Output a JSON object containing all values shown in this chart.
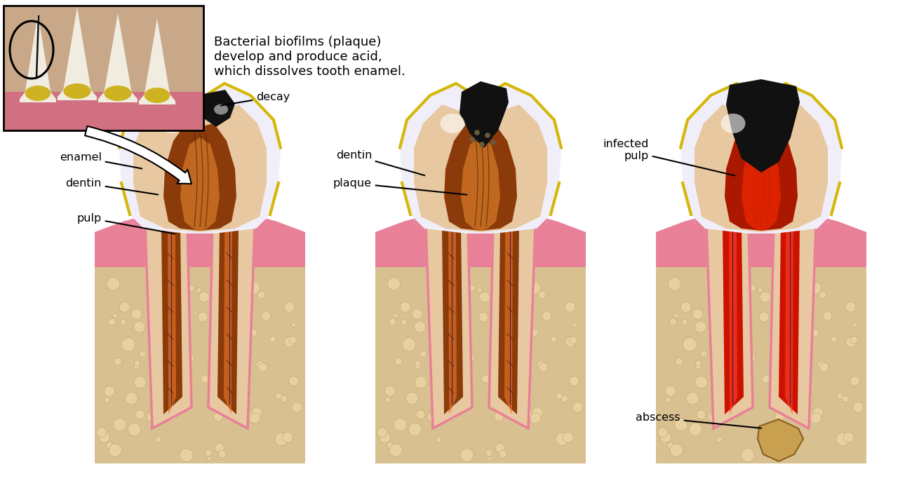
{
  "bg_color": "#ffffff",
  "caption": "Bacterial biofilms (plaque)\ndevelop and produce acid,\nwhich dissolves tooth enamel.",
  "caption_fontsize": 13,
  "labels": {
    "decay1": "decay",
    "enamel": "enamel",
    "dentin1": "dentin",
    "pulp": "pulp",
    "dentin2": "dentin",
    "plaque": "plaque",
    "infected_pulp": "infected\npulp",
    "abscess": "abscess"
  },
  "colors": {
    "enamel_white": "#f0eef8",
    "enamel_sheen": "#e8e2f2",
    "dentin_beige": "#e8c8a0",
    "dentin_mid": "#d4a878",
    "pulp_orange": "#c06820",
    "pulp_dark": "#8b3a0a",
    "pulp_bright": "#e07020",
    "decay_black": "#111111",
    "decay_dark": "#1c1208",
    "plaque_yellow": "#d4b80a",
    "plaque_yellow2": "#c8a800",
    "gum_pink": "#e88098",
    "gum_light": "#f0a0b0",
    "bone_tan": "#d8c090",
    "bone_light": "#e8d0a0",
    "root_outer": "#f0d0a8",
    "periodontal": "#e8a0a0",
    "nerve_dark": "#4a2200",
    "nerve_red": "#cc2200",
    "blood_red": "#cc1100",
    "abscess_tan": "#c8a050",
    "abscess_dark": "#8b6020",
    "infected_red": "#dd2200",
    "pulp_infected": "#aa1800",
    "white_sheen": "#ffffff",
    "shadow_purple": "#c8b8d8"
  }
}
